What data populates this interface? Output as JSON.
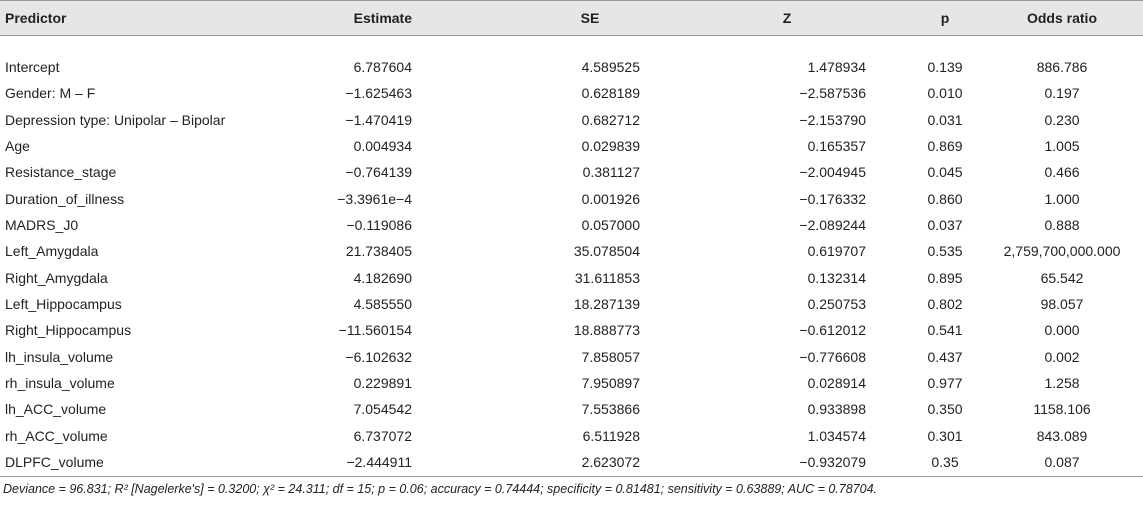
{
  "table": {
    "header": [
      "Predictor",
      "Estimate",
      "SE",
      "Z",
      "p",
      "Odds ratio"
    ],
    "rows": [
      [
        "Intercept",
        "6.787604",
        "4.589525",
        "1.478934",
        "0.139",
        "886.786"
      ],
      [
        "Gender: M – F",
        "−1.625463",
        "0.628189",
        "−2.587536",
        "0.010",
        "0.197"
      ],
      [
        "Depression type: Unipolar – Bipolar",
        "−1.470419",
        "0.682712",
        "−2.153790",
        "0.031",
        "0.230"
      ],
      [
        "Age",
        "0.004934",
        "0.029839",
        "0.165357",
        "0.869",
        "1.005"
      ],
      [
        "Resistance_stage",
        "−0.764139",
        "0.381127",
        "−2.004945",
        "0.045",
        "0.466"
      ],
      [
        "Duration_of_illness",
        "−3.3961e−4",
        "0.001926",
        "−0.176332",
        "0.860",
        "1.000"
      ],
      [
        "MADRS_J0",
        "−0.119086",
        "0.057000",
        "−2.089244",
        "0.037",
        "0.888"
      ],
      [
        "Left_Amygdala",
        "21.738405",
        "35.078504",
        "0.619707",
        "0.535",
        "2,759,700,000.000"
      ],
      [
        "Right_Amygdala",
        "4.182690",
        "31.611853",
        "0.132314",
        "0.895",
        "65.542"
      ],
      [
        "Left_Hippocampus",
        "4.585550",
        "18.287139",
        "0.250753",
        "0.802",
        "98.057"
      ],
      [
        "Right_Hippocampus",
        "−11.560154",
        "18.888773",
        "−0.612012",
        "0.541",
        "0.000"
      ],
      [
        "lh_insula_volume",
        "−6.102632",
        "7.858057",
        "−0.776608",
        "0.437",
        "0.002"
      ],
      [
        "rh_insula_volume",
        "0.229891",
        "7.950897",
        "0.028914",
        "0.977",
        "1.258"
      ],
      [
        "lh_ACC_volume",
        "7.054542",
        "7.553866",
        "0.933898",
        "0.350",
        "1158.106"
      ],
      [
        "rh_ACC_volume",
        "6.737072",
        "6.511928",
        "1.034574",
        "0.301",
        "843.089"
      ],
      [
        "DLPFC_volume",
        "−2.444911",
        "2.623072",
        "−0.932079",
        "0.35",
        "0.087"
      ]
    ],
    "footnote": "Deviance = 96.831; R² [Nagelerke's] = 0.3200; χ² = 24.311; df = 15; p = 0.06; accuracy = 0.74444; specificity = 0.81481; sensitivity = 0.63889; AUC = 0.78704."
  }
}
